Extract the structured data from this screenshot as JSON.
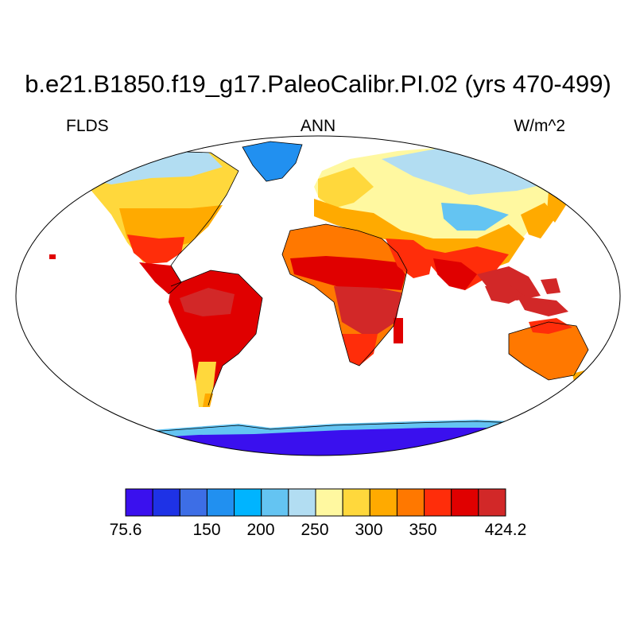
{
  "title": "b.e21.B1850.f19_g17.PaleoCalibr.PI.02 (yrs 470-499)",
  "variable": "FLDS",
  "season": "ANN",
  "units": "W/m^2",
  "colorbar": {
    "min_label": "75.6",
    "max_label": "424.2",
    "tick_labels": [
      "150",
      "200",
      "250",
      "300",
      "350"
    ],
    "colors": [
      "#3a10ee",
      "#1e32e6",
      "#3d6ee6",
      "#2190f0",
      "#00b4ff",
      "#64c4f2",
      "#b2ddf2",
      "#fff8a0",
      "#ffd83c",
      "#ffaa00",
      "#ff7800",
      "#ff2d0a",
      "#e00000",
      "#d22828"
    ]
  }
}
